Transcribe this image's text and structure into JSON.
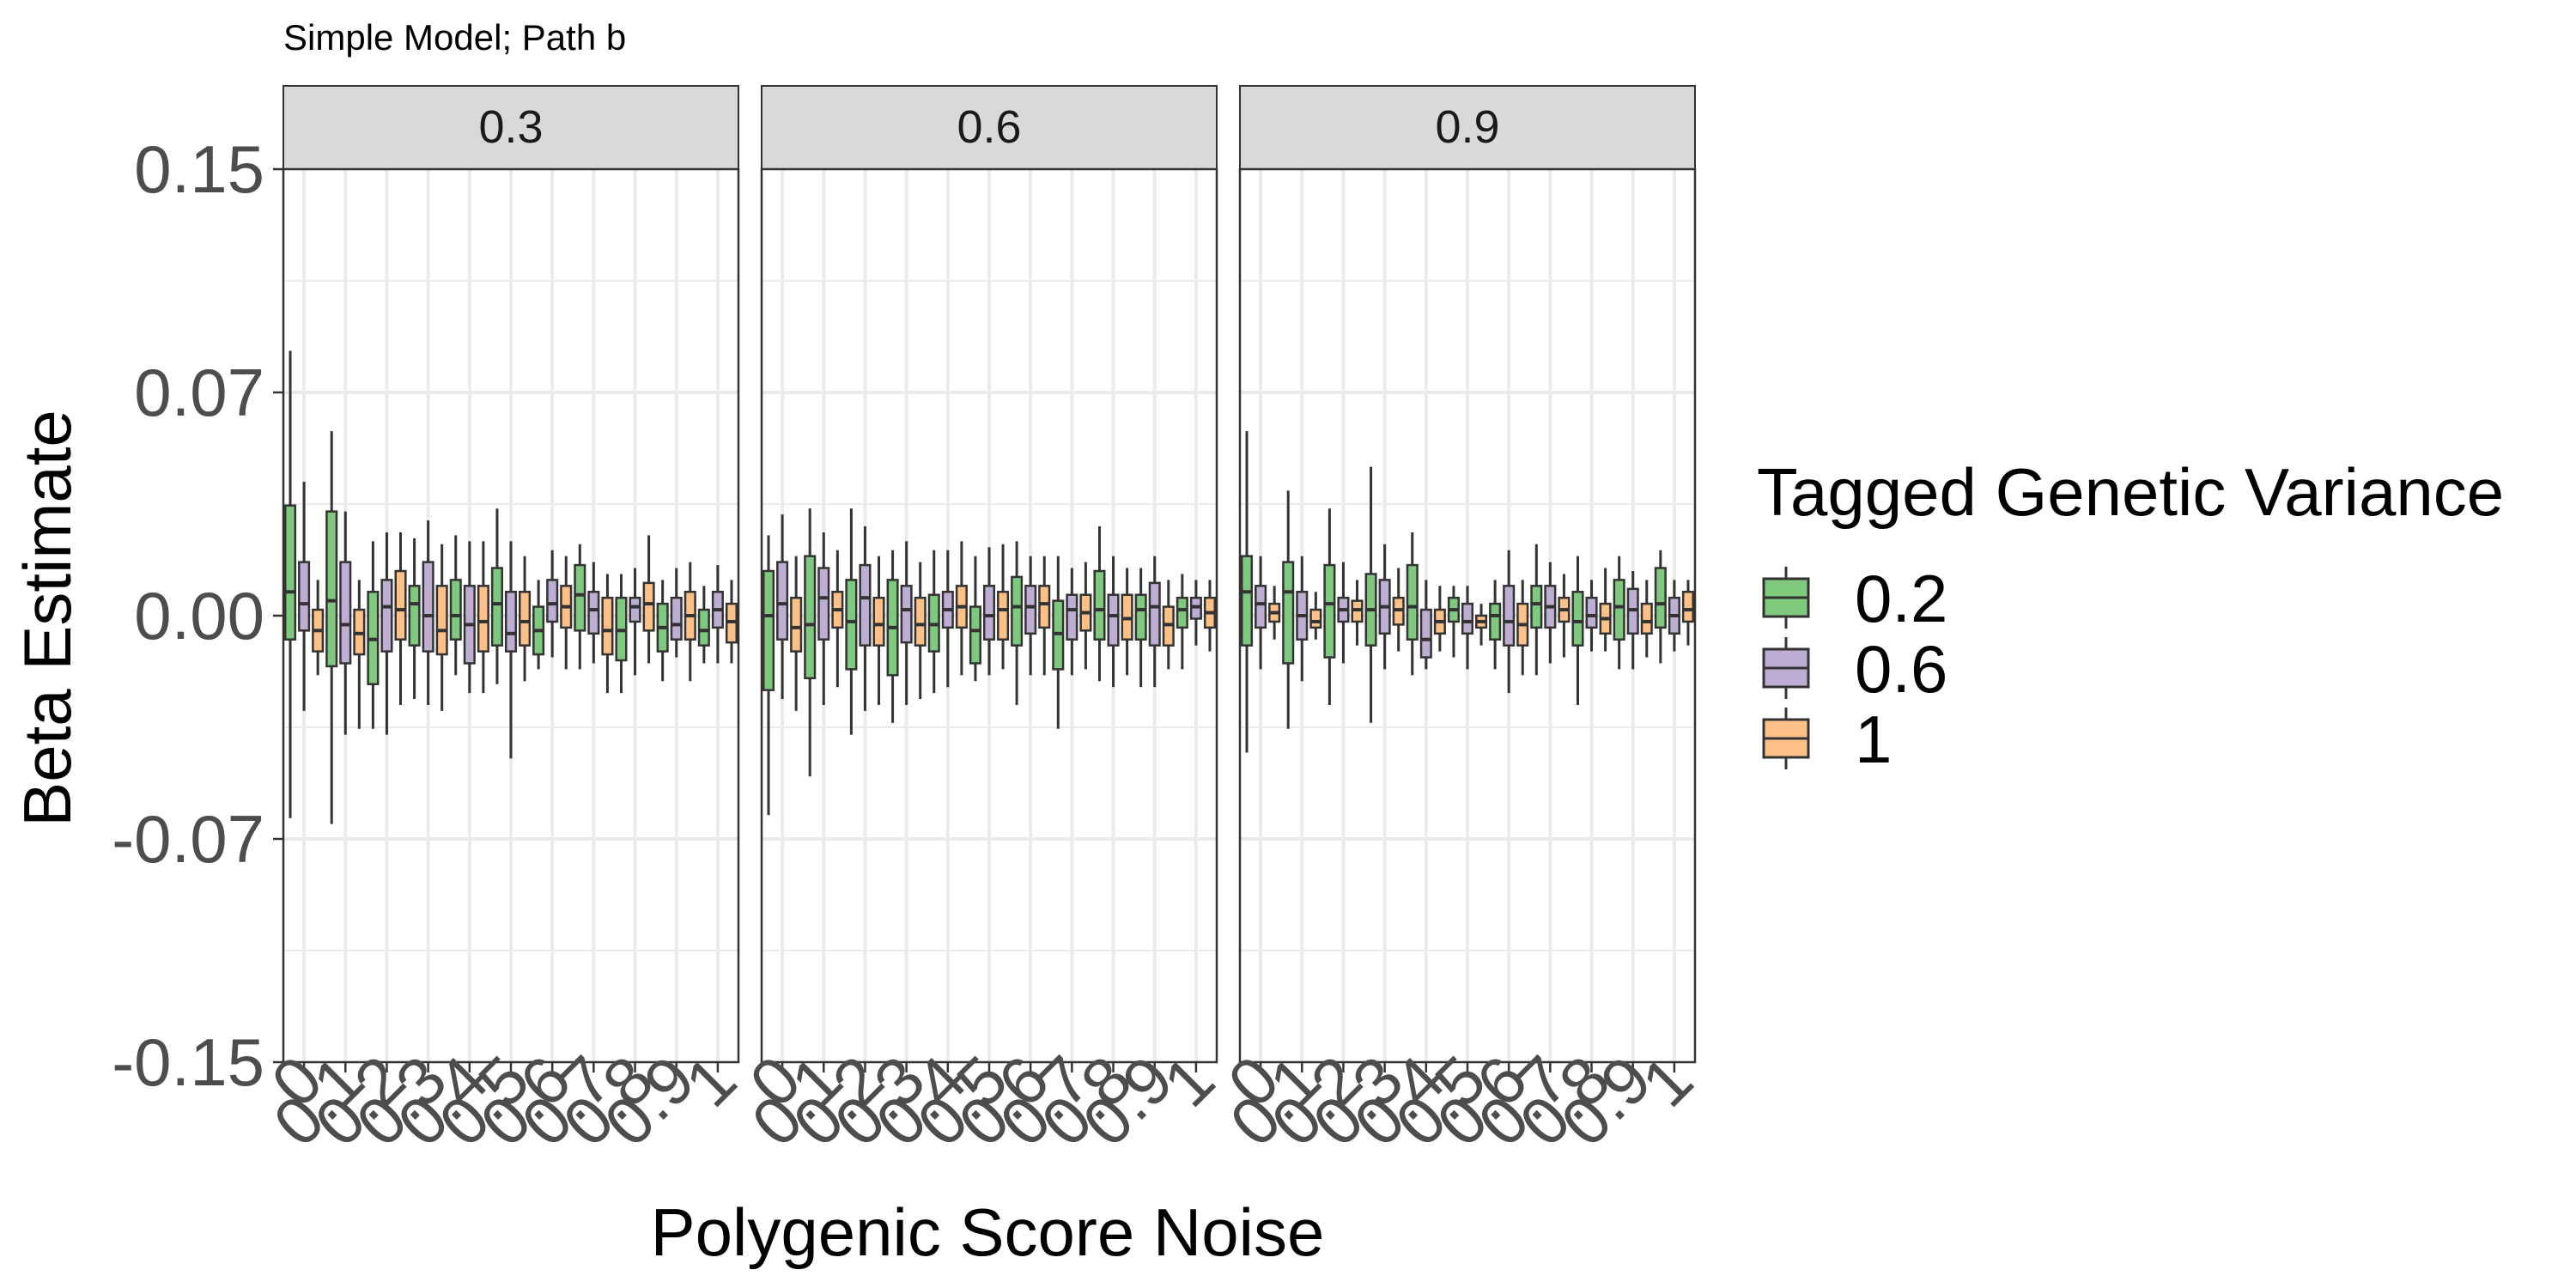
{
  "chart_data": {
    "type": "boxplot",
    "title": "Simple Model; Path b",
    "xlabel": "Polygenic Score Noise",
    "ylabel": "Beta Estimate",
    "ylim": [
      -0.15,
      0.15
    ],
    "yticks": [
      "0.15",
      "0.07",
      "0.00",
      "-0.07",
      "-0.15"
    ],
    "ytick_values": [
      0.15,
      0.075,
      0,
      -0.075,
      -0.15
    ],
    "xtick_labels": [
      "0",
      "0.1",
      "0.2",
      "0.3",
      "0.4",
      "0.5",
      "0.6",
      "0.7",
      "0.8",
      "0.9",
      "1"
    ],
    "grid": true,
    "legend": {
      "title": "Tagged Genetic Variance",
      "position": "right",
      "entries": [
        "0.2",
        "0.6",
        "1"
      ],
      "colors": [
        "#7fc97f",
        "#beaed4",
        "#fdc086"
      ]
    },
    "facets": [
      {
        "label": "0.3",
        "groups": [
          [
            [
              -0.068,
              -0.008,
              0.008,
              0.037,
              0.089
            ],
            [
              -0.032,
              -0.005,
              0.004,
              0.018,
              0.045
            ],
            [
              -0.02,
              -0.012,
              -0.005,
              0.002,
              0.012
            ]
          ],
          [
            [
              -0.07,
              -0.017,
              0.005,
              0.035,
              0.062
            ],
            [
              -0.04,
              -0.016,
              -0.003,
              0.018,
              0.035
            ],
            [
              -0.038,
              -0.013,
              -0.006,
              0.002,
              0.012
            ]
          ],
          [
            [
              -0.038,
              -0.023,
              -0.008,
              0.008,
              0.025
            ],
            [
              -0.04,
              -0.012,
              0.003,
              0.012,
              0.028
            ],
            [
              -0.03,
              -0.008,
              0.002,
              0.015,
              0.028
            ]
          ],
          [
            [
              -0.028,
              -0.01,
              0.004,
              0.01,
              0.026
            ],
            [
              -0.03,
              -0.012,
              0.0,
              0.018,
              0.032
            ],
            [
              -0.032,
              -0.013,
              -0.005,
              0.01,
              0.024
            ]
          ],
          [
            [
              -0.02,
              -0.008,
              0.0,
              0.012,
              0.027
            ],
            [
              -0.026,
              -0.016,
              -0.003,
              0.01,
              0.025
            ],
            [
              -0.026,
              -0.012,
              -0.002,
              0.01,
              0.025
            ]
          ],
          [
            [
              -0.023,
              -0.01,
              0.004,
              0.016,
              0.036
            ],
            [
              -0.048,
              -0.012,
              -0.006,
              0.008,
              0.025
            ],
            [
              -0.022,
              -0.01,
              -0.002,
              0.008,
              0.02
            ]
          ],
          [
            [
              -0.018,
              -0.013,
              -0.005,
              0.003,
              0.012
            ],
            [
              -0.014,
              -0.002,
              0.004,
              0.012,
              0.022
            ],
            [
              -0.018,
              -0.004,
              0.003,
              0.01,
              0.02
            ]
          ],
          [
            [
              -0.018,
              -0.005,
              0.007,
              0.017,
              0.024
            ],
            [
              -0.016,
              -0.006,
              0.002,
              0.008,
              0.018
            ],
            [
              -0.026,
              -0.013,
              -0.005,
              0.006,
              0.014
            ]
          ],
          [
            [
              -0.026,
              -0.015,
              -0.005,
              0.006,
              0.014
            ],
            [
              -0.02,
              -0.002,
              0.003,
              0.006,
              0.016
            ],
            [
              -0.016,
              -0.005,
              0.004,
              0.011,
              0.027
            ]
          ],
          [
            [
              -0.022,
              -0.012,
              -0.004,
              0.004,
              0.012
            ],
            [
              -0.014,
              -0.008,
              -0.003,
              0.006,
              0.016
            ],
            [
              -0.022,
              -0.008,
              0.0,
              0.008,
              0.018
            ]
          ],
          [
            [
              -0.016,
              -0.01,
              -0.005,
              0.002,
              0.01
            ],
            [
              -0.016,
              -0.004,
              0.002,
              0.008,
              0.017
            ],
            [
              -0.016,
              -0.009,
              -0.002,
              0.004,
              0.012
            ]
          ]
        ]
      },
      {
        "label": "0.6",
        "groups": [
          [
            [
              -0.067,
              -0.025,
              0.0,
              0.015,
              0.027
            ],
            [
              -0.028,
              -0.008,
              0.004,
              0.018,
              0.034
            ],
            [
              -0.032,
              -0.012,
              -0.004,
              0.006,
              0.02
            ]
          ],
          [
            [
              -0.054,
              -0.021,
              -0.003,
              0.02,
              0.036
            ],
            [
              -0.03,
              -0.008,
              0.006,
              0.016,
              0.028
            ],
            [
              -0.024,
              -0.004,
              0.002,
              0.008,
              0.022
            ]
          ],
          [
            [
              -0.04,
              -0.018,
              -0.002,
              0.012,
              0.036
            ],
            [
              -0.032,
              -0.01,
              0.006,
              0.017,
              0.03
            ],
            [
              -0.03,
              -0.01,
              -0.003,
              0.006,
              0.02
            ]
          ],
          [
            [
              -0.036,
              -0.02,
              -0.004,
              0.012,
              0.022
            ],
            [
              -0.03,
              -0.009,
              0.002,
              0.01,
              0.025
            ],
            [
              -0.028,
              -0.01,
              -0.003,
              0.006,
              0.018
            ]
          ],
          [
            [
              -0.026,
              -0.012,
              -0.003,
              0.007,
              0.022
            ],
            [
              -0.024,
              -0.004,
              0.002,
              0.008,
              0.022
            ],
            [
              -0.02,
              -0.004,
              0.003,
              0.01,
              0.025
            ]
          ],
          [
            [
              -0.022,
              -0.016,
              -0.005,
              0.003,
              0.02
            ],
            [
              -0.02,
              -0.008,
              0.0,
              0.01,
              0.023
            ],
            [
              -0.018,
              -0.008,
              0.002,
              0.008,
              0.024
            ]
          ],
          [
            [
              -0.03,
              -0.01,
              0.003,
              0.013,
              0.025
            ],
            [
              -0.02,
              -0.006,
              0.003,
              0.01,
              0.02
            ],
            [
              -0.02,
              -0.004,
              0.004,
              0.01,
              0.02
            ]
          ],
          [
            [
              -0.038,
              -0.018,
              -0.006,
              0.005,
              0.02
            ],
            [
              -0.02,
              -0.008,
              0.002,
              0.007,
              0.016
            ],
            [
              -0.018,
              -0.005,
              0.001,
              0.007,
              0.018
            ]
          ],
          [
            [
              -0.022,
              -0.008,
              0.002,
              0.015,
              0.03
            ],
            [
              -0.024,
              -0.01,
              0.0,
              0.007,
              0.02
            ],
            [
              -0.02,
              -0.008,
              -0.001,
              0.007,
              0.016
            ]
          ],
          [
            [
              -0.024,
              -0.008,
              0.002,
              0.007,
              0.016
            ],
            [
              -0.024,
              -0.01,
              0.003,
              0.011,
              0.02
            ],
            [
              -0.018,
              -0.01,
              -0.003,
              0.003,
              0.012
            ]
          ],
          [
            [
              -0.018,
              -0.004,
              0.002,
              0.006,
              0.014
            ],
            [
              -0.01,
              -0.001,
              0.003,
              0.006,
              0.012
            ],
            [
              -0.012,
              -0.004,
              0.001,
              0.006,
              0.012
            ]
          ]
        ]
      },
      {
        "label": "0.9",
        "groups": [
          [
            [
              -0.046,
              -0.01,
              0.008,
              0.02,
              0.062
            ],
            [
              -0.018,
              -0.004,
              0.004,
              0.01,
              0.02
            ],
            [
              -0.008,
              -0.002,
              0.001,
              0.004,
              0.01
            ]
          ],
          [
            [
              -0.038,
              -0.016,
              0.008,
              0.018,
              0.042
            ],
            [
              -0.022,
              -0.008,
              0.0,
              0.008,
              0.02
            ],
            [
              -0.008,
              -0.004,
              -0.002,
              0.002,
              0.008
            ]
          ],
          [
            [
              -0.03,
              -0.014,
              0.004,
              0.017,
              0.036
            ],
            [
              -0.016,
              -0.002,
              0.002,
              0.006,
              0.018
            ],
            [
              -0.01,
              -0.002,
              0.002,
              0.005,
              0.012
            ]
          ],
          [
            [
              -0.036,
              -0.01,
              0.002,
              0.014,
              0.05
            ],
            [
              -0.018,
              -0.006,
              0.003,
              0.012,
              0.024
            ],
            [
              -0.012,
              -0.003,
              0.002,
              0.006,
              0.016
            ]
          ],
          [
            [
              -0.02,
              -0.008,
              0.003,
              0.017,
              0.028
            ],
            [
              -0.018,
              -0.014,
              -0.008,
              0.002,
              0.012
            ],
            [
              -0.012,
              -0.006,
              -0.002,
              0.002,
              0.01
            ]
          ],
          [
            [
              -0.014,
              -0.002,
              0.002,
              0.006,
              0.01
            ],
            [
              -0.018,
              -0.006,
              -0.002,
              0.004,
              0.01
            ],
            [
              -0.01,
              -0.004,
              -0.002,
              0.0,
              0.004
            ]
          ],
          [
            [
              -0.018,
              -0.008,
              0.0,
              0.004,
              0.012
            ],
            [
              -0.026,
              -0.01,
              -0.002,
              0.01,
              0.022
            ],
            [
              -0.02,
              -0.01,
              -0.003,
              0.004,
              0.012
            ]
          ],
          [
            [
              -0.02,
              -0.004,
              0.004,
              0.01,
              0.024
            ],
            [
              -0.016,
              -0.004,
              0.003,
              0.01,
              0.018
            ],
            [
              -0.014,
              -0.002,
              0.002,
              0.006,
              0.014
            ]
          ],
          [
            [
              -0.03,
              -0.01,
              -0.002,
              0.008,
              0.02
            ],
            [
              -0.012,
              -0.004,
              0.0,
              0.006,
              0.012
            ],
            [
              -0.012,
              -0.006,
              -0.001,
              0.004,
              0.016
            ]
          ],
          [
            [
              -0.018,
              -0.008,
              0.003,
              0.012,
              0.02
            ],
            [
              -0.018,
              -0.006,
              0.002,
              0.009,
              0.015
            ],
            [
              -0.014,
              -0.006,
              -0.002,
              0.004,
              0.012
            ]
          ],
          [
            [
              -0.016,
              -0.004,
              0.004,
              0.016,
              0.022
            ],
            [
              -0.012,
              -0.006,
              0.0,
              0.006,
              0.012
            ],
            [
              -0.01,
              -0.002,
              0.002,
              0.008,
              0.012
            ]
          ]
        ]
      }
    ]
  }
}
